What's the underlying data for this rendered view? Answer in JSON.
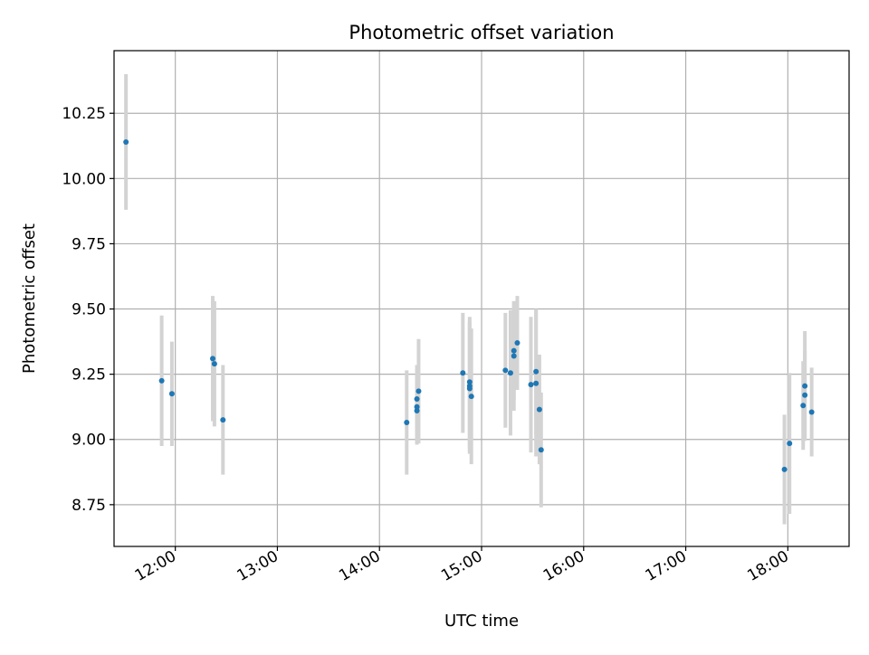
{
  "chart_data": {
    "type": "scatter",
    "title": "Photometric offset variation",
    "xlabel": "UTC time",
    "ylabel": "Photometric offset",
    "xlim": [
      "11:24",
      "18:36"
    ],
    "ylim": [
      8.59,
      10.49
    ],
    "x_ticks": [
      "12:00",
      "13:00",
      "14:00",
      "15:00",
      "16:00",
      "17:00",
      "18:00"
    ],
    "y_ticks": [
      "8.75",
      "9.00",
      "9.25",
      "9.50",
      "9.75",
      "10.00",
      "10.25"
    ],
    "grid": true,
    "point_color": "#1f77b4",
    "errorbar_color": "#d3d3d3",
    "points": [
      {
        "x": "11:31",
        "y": 10.14,
        "err": 0.26
      },
      {
        "x": "11:52",
        "y": 9.225,
        "err": 0.25
      },
      {
        "x": "11:58",
        "y": 9.175,
        "err": 0.2
      },
      {
        "x": "12:22",
        "y": 9.31,
        "err": 0.24
      },
      {
        "x": "12:23",
        "y": 9.29,
        "err": 0.24
      },
      {
        "x": "12:28",
        "y": 9.075,
        "err": 0.21
      },
      {
        "x": "14:16",
        "y": 9.065,
        "err": 0.2
      },
      {
        "x": "14:22",
        "y": 9.11,
        "err": 0.13
      },
      {
        "x": "14:22",
        "y": 9.125,
        "err": 0.14
      },
      {
        "x": "14:22",
        "y": 9.155,
        "err": 0.13
      },
      {
        "x": "14:23",
        "y": 9.185,
        "err": 0.2
      },
      {
        "x": "14:49",
        "y": 9.255,
        "err": 0.23
      },
      {
        "x": "14:53",
        "y": 9.22,
        "err": 0.25
      },
      {
        "x": "14:53",
        "y": 9.205,
        "err": 0.25
      },
      {
        "x": "14:53",
        "y": 9.195,
        "err": 0.25
      },
      {
        "x": "14:54",
        "y": 9.165,
        "err": 0.26
      },
      {
        "x": "15:14",
        "y": 9.265,
        "err": 0.22
      },
      {
        "x": "15:17",
        "y": 9.255,
        "err": 0.24
      },
      {
        "x": "15:19",
        "y": 9.32,
        "err": 0.21
      },
      {
        "x": "15:19",
        "y": 9.34,
        "err": 0.19
      },
      {
        "x": "15:21",
        "y": 9.37,
        "err": 0.18
      },
      {
        "x": "15:29",
        "y": 9.21,
        "err": 0.26
      },
      {
        "x": "15:32",
        "y": 9.26,
        "err": 0.24
      },
      {
        "x": "15:32",
        "y": 9.215,
        "err": 0.28
      },
      {
        "x": "15:34",
        "y": 9.115,
        "err": 0.21
      },
      {
        "x": "15:35",
        "y": 8.96,
        "err": 0.22
      },
      {
        "x": "17:58",
        "y": 8.885,
        "err": 0.21
      },
      {
        "x": "18:01",
        "y": 8.985,
        "err": 0.27
      },
      {
        "x": "18:09",
        "y": 9.13,
        "err": 0.17
      },
      {
        "x": "18:10",
        "y": 9.205,
        "err": 0.21
      },
      {
        "x": "18:10",
        "y": 9.17,
        "err": 0.17
      },
      {
        "x": "18:14",
        "y": 9.105,
        "err": 0.17
      }
    ]
  }
}
